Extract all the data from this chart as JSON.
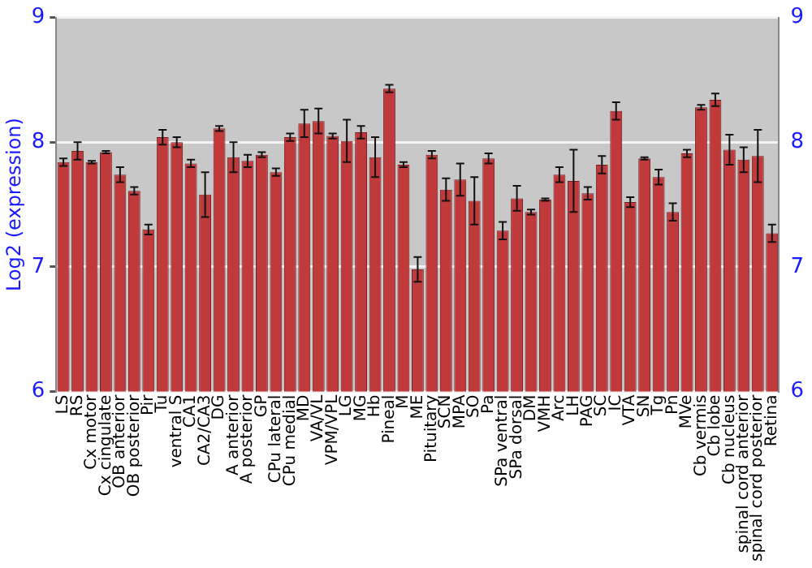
{
  "chart_data": {
    "type": "bar",
    "ylabel": "Log2 (expression)",
    "categories": [
      "LS",
      "RS",
      "Cx motor",
      "Cx cingulate",
      "OB anterior",
      "OB posterior",
      "Pir",
      "Tu",
      "ventral S",
      "CA1",
      "CA2/CA3",
      "DG",
      "A anterior",
      "A posterior",
      "GP",
      "CPu lateral",
      "CPu medial",
      "MD",
      "VA/VL",
      "VPM/VPL",
      "LG",
      "MG",
      "Hb",
      "Pineal",
      "M",
      "ME",
      "Pituitary",
      "SCN",
      "MPA",
      "SO",
      "Pa",
      "SPa ventral",
      "SPa dorsal",
      "DM",
      "VMH",
      "Arc",
      "LH",
      "PAG",
      "SC",
      "IC",
      "VTA",
      "SN",
      "Tg",
      "Pn",
      "MVe",
      "Cb vermis",
      "Cb lobe",
      "Cb nucleus",
      "spinal cord anterior",
      "spinal cord posterior",
      "Retina"
    ],
    "values": [
      7.84,
      7.93,
      7.84,
      7.92,
      7.74,
      7.61,
      7.3,
      8.04,
      8.0,
      7.83,
      7.58,
      8.11,
      7.88,
      7.85,
      7.9,
      7.76,
      8.04,
      8.15,
      8.17,
      8.05,
      8.01,
      8.08,
      7.88,
      8.43,
      7.82,
      6.98,
      7.9,
      7.62,
      7.7,
      7.53,
      7.87,
      7.29,
      7.55,
      7.44,
      7.54,
      7.74,
      7.69,
      7.59,
      7.82,
      8.25,
      7.52,
      7.87,
      7.72,
      7.44,
      7.91,
      8.28,
      8.34,
      7.94,
      7.86,
      7.89,
      7.27
    ],
    "errors": [
      0.03,
      0.07,
      0.01,
      0.01,
      0.06,
      0.03,
      0.04,
      0.06,
      0.04,
      0.03,
      0.18,
      0.02,
      0.12,
      0.05,
      0.02,
      0.03,
      0.03,
      0.11,
      0.1,
      0.02,
      0.17,
      0.05,
      0.16,
      0.03,
      0.02,
      0.1,
      0.03,
      0.09,
      0.13,
      0.19,
      0.04,
      0.07,
      0.1,
      0.02,
      0.01,
      0.06,
      0.25,
      0.05,
      0.07,
      0.07,
      0.04,
      0.01,
      0.06,
      0.07,
      0.03,
      0.02,
      0.05,
      0.12,
      0.1,
      0.21,
      0.07
    ],
    "color": "#c0393b",
    "ylim": [
      6,
      9
    ],
    "yticks": [
      6,
      7,
      8,
      9
    ],
    "y2lim": [
      6,
      9
    ],
    "y2ticks": [
      6,
      7,
      8,
      9
    ],
    "grid": "y",
    "legend": false
  }
}
